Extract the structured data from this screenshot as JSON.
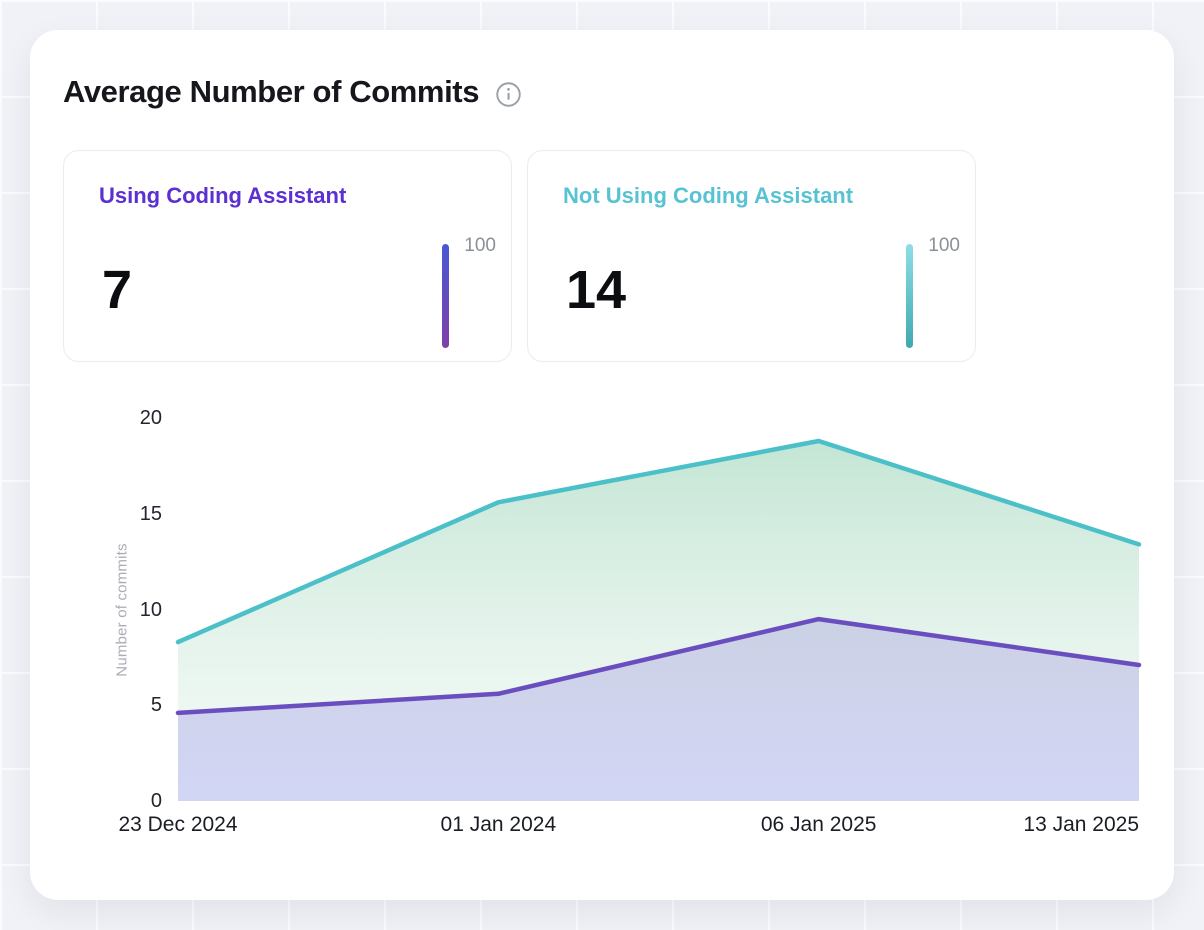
{
  "header": {
    "title": "Average Number of Commits"
  },
  "stats": [
    {
      "label": "Using Coding Assistant",
      "value": "7",
      "scale_max": "100",
      "accent": "#5b2fd1",
      "bar_from": "#4758d6",
      "bar_to": "#8040a8"
    },
    {
      "label": "Not Using Coding Assistant",
      "value": "14",
      "scale_max": "100",
      "accent": "#57c3d2",
      "bar_from": "#8edee6",
      "bar_to": "#3fa9b0"
    }
  ],
  "chart_data": {
    "type": "area",
    "x": [
      "23 Dec 2024",
      "01 Jan 2024",
      "06 Jan 2025",
      "13 Jan 2025"
    ],
    "series": [
      {
        "name": "Not Using Coding Assistant",
        "color": "#4cc0c9",
        "values": [
          8.3,
          15.6,
          18.8,
          13.4
        ]
      },
      {
        "name": "Using Coding Assistant",
        "color": "#6a4ec0",
        "values": [
          4.6,
          5.6,
          9.5,
          7.1
        ]
      }
    ],
    "title": "Average Number of Commits",
    "xlabel": "",
    "ylabel": "Number of commits",
    "yticks": [
      0,
      5,
      10,
      15,
      20
    ],
    "ylim": [
      0,
      20
    ],
    "grid": false,
    "legend": "none"
  }
}
